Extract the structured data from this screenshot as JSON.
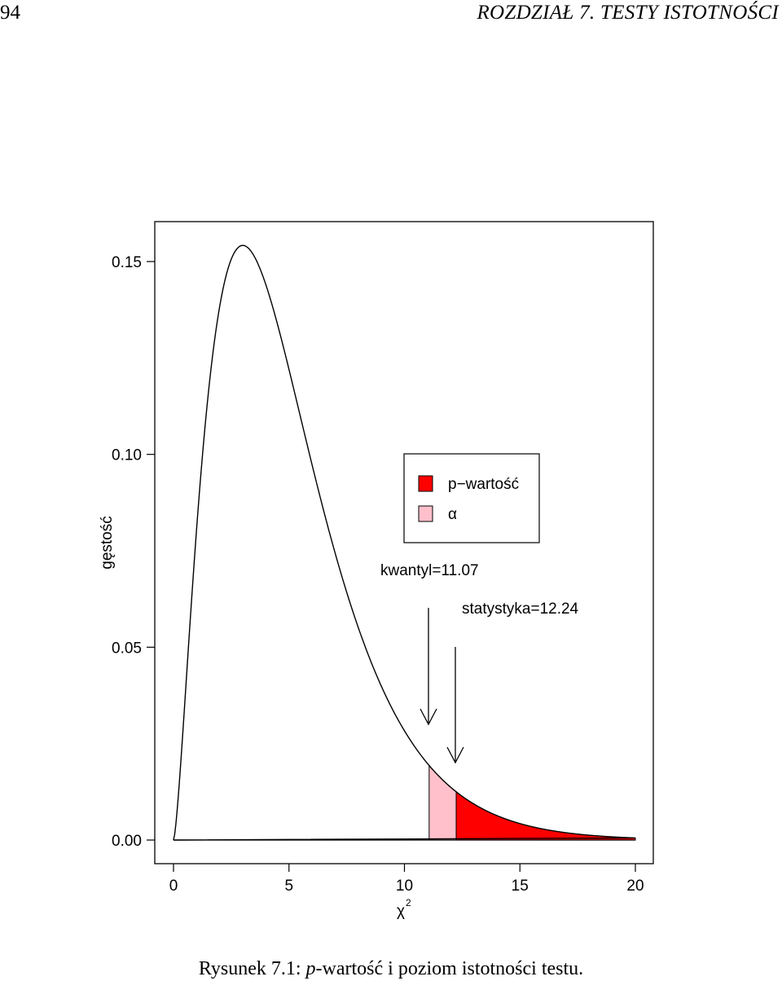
{
  "header": {
    "page_number": "94",
    "running_title": "ROZDZIAŁ 7.  TESTY ISTOTNOŚCI"
  },
  "caption": {
    "prefix": "Rysunek 7.1: ",
    "p_letter": "p",
    "rest": "-wartość i poziom istotności testu."
  },
  "chart_data": {
    "type": "line",
    "distribution": "chi-squared density, df = 5",
    "x_range": [
      0,
      20
    ],
    "ylim": [
      0,
      0.155
    ],
    "xticks": [
      "0",
      "5",
      "10",
      "15",
      "20"
    ],
    "yticks": [
      "0.00",
      "0.05",
      "0.10",
      "0.15"
    ],
    "xlabel": "χ",
    "xlabel_superscript": "2",
    "ylabel": "gęstość",
    "alpha_region": [
      11.07,
      12.24
    ],
    "pvalue_region": [
      12.24,
      20
    ],
    "alpha_color": "#ffc0cb",
    "pvalue_color": "#ff0000",
    "annotations": [
      {
        "label": "kwantyl=11.07",
        "x": 11.07
      },
      {
        "label": "statystyka=12.24",
        "x": 12.24
      }
    ],
    "legend": {
      "placement": "top-right",
      "entries": [
        {
          "label": "p−wartość",
          "color": "#ff0000"
        },
        {
          "label": "α",
          "color": "#ffc0cb"
        }
      ]
    }
  }
}
